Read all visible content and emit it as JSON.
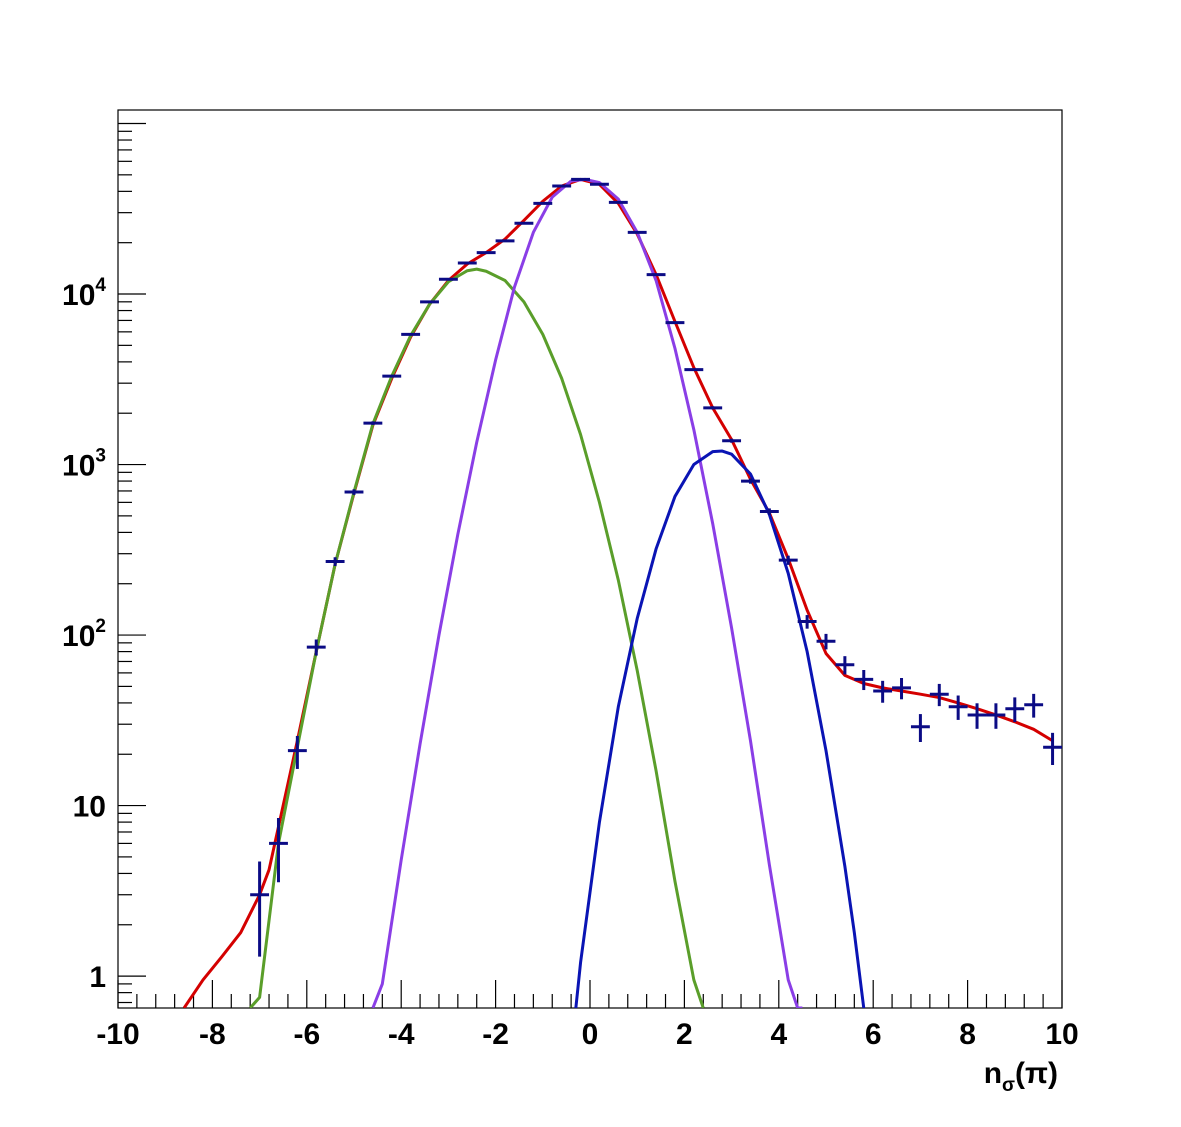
{
  "chart_data": {
    "type": "scatter",
    "title": "",
    "xlabel": {
      "base": "n",
      "sub": "σ",
      "rest": "(π)"
    },
    "ylabel": "",
    "xlim": [
      -10,
      10
    ],
    "ylim": [
      0.65,
      120000
    ],
    "yscale": "log",
    "grid": false,
    "legend": "none",
    "x_ticks": [
      "-10",
      "-8",
      "-6",
      "-4",
      "-2",
      "0",
      "2",
      "4",
      "6",
      "8",
      "10"
    ],
    "y_ticks": [
      {
        "value": 1,
        "base": "1",
        "exp": ""
      },
      {
        "value": 10,
        "base": "10",
        "exp": ""
      },
      {
        "value": 100,
        "base": "10",
        "exp": "2"
      },
      {
        "value": 1000,
        "base": "10",
        "exp": "3"
      },
      {
        "value": 10000,
        "base": "10",
        "exp": "4"
      }
    ],
    "bin_half_width": 0.2,
    "data_points": {
      "name": "",
      "color": "#0b0b85",
      "x": [
        -7.0,
        -6.6,
        -6.2,
        -5.8,
        -5.4,
        -5.0,
        -4.6,
        -4.2,
        -3.8,
        -3.4,
        -3.0,
        -2.6,
        -2.2,
        -1.8,
        -1.4,
        -1.0,
        -0.6,
        -0.2,
        0.2,
        0.6,
        1.0,
        1.4,
        1.8,
        2.2,
        2.6,
        3.0,
        3.4,
        3.8,
        4.2,
        4.6,
        5.0,
        5.4,
        5.8,
        6.2,
        6.6,
        7.0,
        7.4,
        7.8,
        8.2,
        8.6,
        9.0,
        9.4,
        9.8
      ],
      "y": [
        3,
        6,
        21,
        85,
        270,
        690,
        1750,
        3300,
        5800,
        9000,
        12200,
        15200,
        17500,
        20500,
        26000,
        34000,
        43000,
        47000,
        44000,
        34500,
        23000,
        13000,
        6800,
        3600,
        2150,
        1380,
        800,
        530,
        275,
        120,
        92,
        67,
        55,
        47,
        49,
        29,
        45,
        38,
        34,
        34,
        37,
        39,
        22
      ],
      "err_low": [
        1.7,
        2.45,
        4.6,
        9.2,
        16,
        26,
        42,
        57,
        76,
        95,
        110,
        123,
        132,
        143,
        161,
        184,
        207,
        217,
        210,
        186,
        152,
        114,
        82,
        60,
        46,
        37,
        28,
        23,
        17,
        11,
        9.6,
        8.2,
        7.4,
        6.9,
        7,
        5.4,
        6.7,
        6.2,
        5.8,
        5.8,
        6.1,
        6.2,
        4.7
      ],
      "err_high": [
        1.7,
        2.45,
        4.6,
        9.2,
        16,
        26,
        42,
        57,
        76,
        95,
        110,
        123,
        132,
        143,
        161,
        184,
        207,
        217,
        210,
        186,
        152,
        114,
        82,
        60,
        46,
        37,
        28,
        23,
        17,
        11,
        9.6,
        8.2,
        7.4,
        6.9,
        7,
        5.4,
        6.7,
        6.2,
        5.8,
        5.8,
        6.1,
        6.2,
        4.7
      ]
    },
    "curves": [
      {
        "name": "",
        "color": "#d40000",
        "x": [
          -8.6,
          -8.2,
          -7.8,
          -7.4,
          -7.0,
          -6.8,
          -6.6,
          -6.2,
          -5.8,
          -5.4,
          -5.0,
          -4.6,
          -4.2,
          -3.8,
          -3.4,
          -3.0,
          -2.6,
          -2.2,
          -1.8,
          -1.4,
          -1.0,
          -0.6,
          -0.2,
          0.2,
          0.6,
          1.0,
          1.4,
          1.8,
          2.2,
          2.6,
          3.0,
          3.4,
          3.8,
          4.2,
          4.6,
          5.0,
          5.4,
          5.8,
          6.2,
          6.6,
          7.0,
          7.4,
          7.8,
          8.2,
          8.6,
          9.0,
          9.4,
          9.8
        ],
        "y": [
          0.65,
          0.95,
          1.3,
          1.8,
          3.0,
          4.2,
          7.5,
          24,
          80,
          260,
          680,
          1700,
          3200,
          5600,
          8700,
          12000,
          15000,
          17500,
          21000,
          27000,
          35000,
          43000,
          47000,
          44000,
          34000,
          22500,
          13000,
          6900,
          3700,
          2150,
          1400,
          820,
          520,
          280,
          140,
          78,
          58,
          52,
          49,
          47,
          45,
          43,
          40,
          37,
          34,
          31,
          28,
          24
        ]
      },
      {
        "name": "",
        "color": "#5a9e2a",
        "x": [
          -7.2,
          -7.0,
          -6.6,
          -6.2,
          -5.8,
          -5.4,
          -5.0,
          -4.6,
          -4.2,
          -3.8,
          -3.4,
          -3.0,
          -2.6,
          -2.4,
          -2.2,
          -1.8,
          -1.4,
          -1.0,
          -0.6,
          -0.2,
          0.2,
          0.6,
          1.0,
          1.4,
          1.8,
          2.2,
          2.4
        ],
        "y": [
          0.65,
          0.75,
          6,
          22,
          80,
          260,
          690,
          1730,
          3300,
          5700,
          8700,
          11800,
          13700,
          14000,
          13600,
          12000,
          9000,
          5800,
          3200,
          1500,
          600,
          210,
          62,
          16,
          3.6,
          0.95,
          0.65
        ]
      },
      {
        "name": "",
        "color": "#8a3ee6",
        "x": [
          -4.6,
          -4.4,
          -4.0,
          -3.6,
          -3.2,
          -2.8,
          -2.4,
          -2.0,
          -1.6,
          -1.2,
          -0.8,
          -0.4,
          -0.1,
          0.2,
          0.6,
          1.0,
          1.4,
          1.8,
          2.2,
          2.6,
          3.0,
          3.4,
          3.8,
          4.2,
          4.4,
          4.5
        ],
        "y": [
          0.65,
          0.9,
          4.8,
          23,
          100,
          390,
          1350,
          4100,
          11000,
          23000,
          37000,
          46000,
          47000,
          45000,
          36000,
          23000,
          12000,
          4800,
          1600,
          450,
          110,
          24,
          4.5,
          0.95,
          0.65,
          0.65
        ]
      },
      {
        "name": "",
        "color": "#0a14b4",
        "x": [
          -0.3,
          -0.2,
          0.2,
          0.6,
          1.0,
          1.4,
          1.8,
          2.2,
          2.6,
          2.8,
          3.0,
          3.4,
          3.8,
          4.2,
          4.6,
          5.0,
          5.4,
          5.6,
          5.8
        ],
        "y": [
          0.65,
          1.2,
          8,
          38,
          125,
          320,
          650,
          1000,
          1190,
          1200,
          1150,
          880,
          510,
          230,
          80,
          21,
          4.4,
          1.8,
          0.65
        ]
      }
    ]
  }
}
